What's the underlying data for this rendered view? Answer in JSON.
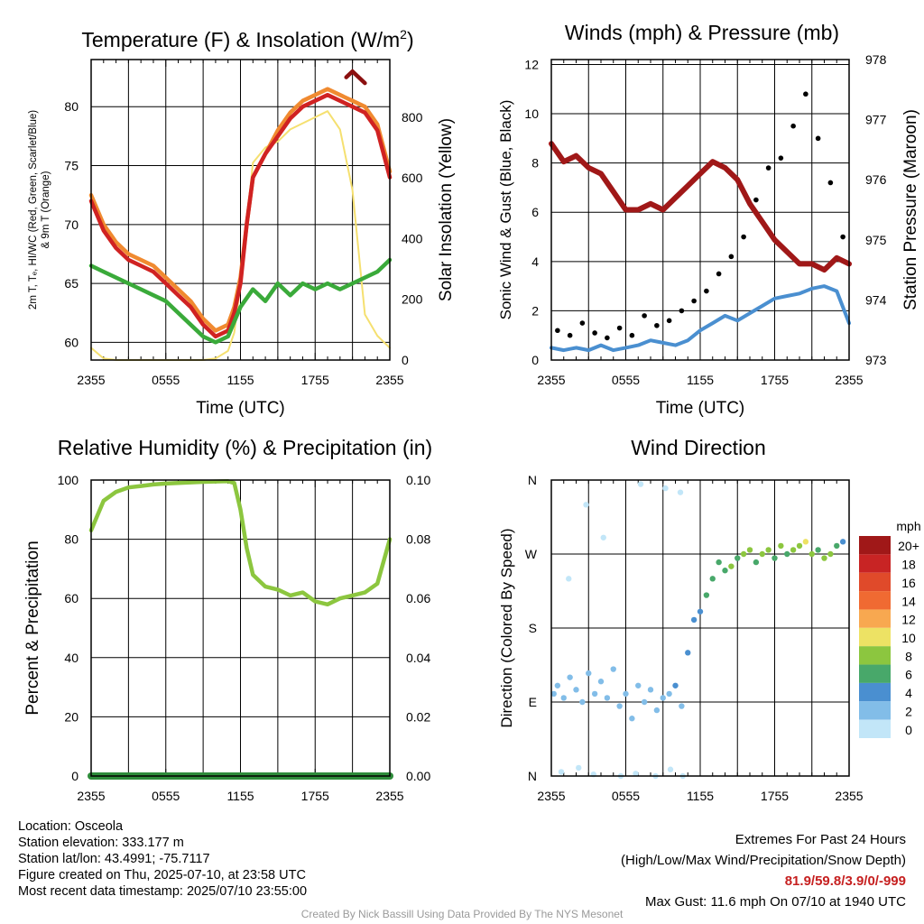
{
  "chart_data": [
    {
      "id": "temp",
      "type": "line",
      "title": "Temperature (F) & Insolation (W/m²)",
      "title_main": "Temperature (F) & Insolation (W/m",
      "title_sup": "2",
      "title_close": ")",
      "xlabel": "Time (UTC)",
      "ylabel_lines": [
        "2m T, Tₑ, HI/WC (Red, Green, Scarlet/Blue)",
        "& 9m T (Orange)"
      ],
      "y2label": "Solar Insolation (Yellow)",
      "x_ticks": [
        "2355",
        "0555",
        "1155",
        "1755",
        "2355"
      ],
      "x_range_hours": [
        0,
        24
      ],
      "ylim": [
        58.5,
        84
      ],
      "y_ticks": [
        60,
        65,
        70,
        75,
        80
      ],
      "y2lim": [
        0,
        990
      ],
      "y2_ticks": [
        0,
        200,
        400,
        600,
        800
      ],
      "grid": true,
      "series": [
        {
          "color": "#f08a30",
          "axis": "left",
          "x": [
            0,
            1,
            2,
            3,
            4,
            5,
            6,
            7,
            8,
            9,
            10,
            11,
            11.5,
            12,
            12.5,
            13,
            14,
            15,
            16,
            17,
            18,
            19,
            20,
            21,
            22,
            23,
            24
          ],
          "values": [
            72.5,
            70,
            68.5,
            67.5,
            67,
            66.5,
            65.5,
            64.5,
            63.5,
            62,
            61,
            61.5,
            63,
            65.5,
            70,
            74,
            76,
            78,
            79.5,
            80.5,
            81,
            81.5,
            81,
            80.5,
            80,
            78.5,
            74.5
          ]
        },
        {
          "color": "#d02222",
          "axis": "left",
          "x": [
            0,
            1,
            2,
            3,
            4,
            5,
            6,
            7,
            8,
            9,
            10,
            11,
            11.5,
            12,
            12.5,
            13,
            14,
            15,
            16,
            17,
            18,
            19,
            20,
            21,
            22,
            23,
            24
          ],
          "values": [
            72,
            69.5,
            68,
            67,
            66.5,
            66,
            65,
            64,
            63,
            61.5,
            60.5,
            61,
            62.5,
            65,
            70,
            74,
            76,
            77.5,
            79,
            80,
            80.5,
            81,
            80.5,
            80,
            79.5,
            78,
            74
          ]
        },
        {
          "color": "#3aaa3a",
          "axis": "left",
          "x": [
            0,
            1,
            2,
            3,
            4,
            5,
            6,
            7,
            8,
            9,
            10,
            11,
            12,
            13,
            14,
            15,
            16,
            17,
            18,
            19,
            20,
            21,
            22,
            23,
            24
          ],
          "values": [
            66.5,
            66,
            65.5,
            65,
            64.5,
            64,
            63.5,
            62.5,
            61.5,
            60.5,
            60,
            60.5,
            63,
            64.5,
            63.5,
            65,
            64,
            65,
            64.5,
            65,
            64.5,
            65,
            65.5,
            66,
            67
          ]
        },
        {
          "color": "#8b1010",
          "axis": "left",
          "x": [
            20.5,
            21,
            21.5,
            22
          ],
          "values": [
            82.5,
            83,
            82.5,
            82
          ]
        },
        {
          "color": "#f5e070",
          "axis": "right",
          "x": [
            0,
            1,
            2,
            3,
            4,
            5,
            6,
            7,
            8,
            9,
            10,
            11,
            11.5,
            12,
            12.5,
            13,
            14,
            15,
            16,
            17,
            18,
            19,
            20,
            21,
            22,
            23,
            24
          ],
          "values": [
            40,
            5,
            0,
            0,
            0,
            0,
            0,
            0,
            0,
            0,
            5,
            30,
            90,
            250,
            450,
            650,
            700,
            720,
            760,
            780,
            800,
            820,
            760,
            560,
            150,
            80,
            40
          ]
        }
      ]
    },
    {
      "id": "wind",
      "type": "line",
      "title": "Winds (mph) & Pressure (mb)",
      "xlabel": "Time (UTC)",
      "ylabel": "Sonic Wind & Gust (Blue, Black)",
      "y2label": "Station Pressure (Maroon)",
      "x_ticks": [
        "2355",
        "0555",
        "1155",
        "1755",
        "2355"
      ],
      "x_range_hours": [
        0,
        24
      ],
      "ylim": [
        0,
        12.2
      ],
      "y_ticks": [
        0,
        2,
        4,
        6,
        8,
        10,
        12
      ],
      "y2lim": [
        973,
        978
      ],
      "y2_ticks": [
        973,
        974,
        975,
        976,
        977,
        978
      ],
      "grid": true,
      "series": [
        {
          "name": "pressure",
          "color": "#a01818",
          "axis": "right",
          "x": [
            0,
            1,
            2,
            3,
            4,
            5,
            6,
            7,
            8,
            9,
            10,
            11,
            12,
            13,
            14,
            15,
            16,
            17,
            18,
            19,
            20,
            21,
            22,
            23,
            24
          ],
          "values": [
            976.6,
            976.3,
            976.4,
            976.2,
            976.1,
            975.8,
            975.5,
            975.5,
            975.6,
            975.5,
            975.7,
            975.9,
            976.1,
            976.3,
            976.2,
            976.0,
            975.6,
            975.3,
            975.0,
            974.8,
            974.6,
            974.6,
            974.5,
            974.7,
            974.6
          ]
        },
        {
          "name": "wind",
          "color": "#4a8fd0",
          "axis": "left",
          "x": [
            0,
            1,
            2,
            3,
            4,
            5,
            6,
            7,
            8,
            9,
            10,
            11,
            12,
            13,
            14,
            15,
            16,
            17,
            18,
            19,
            20,
            21,
            22,
            23,
            24
          ],
          "values": [
            0.5,
            0.4,
            0.5,
            0.4,
            0.6,
            0.4,
            0.5,
            0.6,
            0.8,
            0.7,
            0.6,
            0.8,
            1.2,
            1.5,
            1.8,
            1.6,
            1.9,
            2.2,
            2.5,
            2.6,
            2.7,
            2.9,
            3.0,
            2.8,
            1.5
          ]
        },
        {
          "name": "gust",
          "type": "scatter",
          "color": "#000000",
          "axis": "left",
          "x": [
            0.5,
            1.5,
            2.5,
            3.5,
            4.5,
            5.5,
            6.5,
            7.5,
            8.5,
            9.5,
            10.5,
            11.5,
            12.5,
            13.5,
            14.5,
            15.5,
            16.5,
            17.5,
            18.5,
            19.5,
            20.5,
            21.5,
            22.5,
            23.5
          ],
          "values": [
            1.2,
            1.0,
            1.5,
            1.1,
            0.9,
            1.3,
            1.0,
            1.8,
            1.4,
            1.6,
            2.0,
            2.4,
            2.8,
            3.5,
            4.2,
            5.0,
            6.5,
            7.8,
            8.2,
            9.5,
            10.8,
            9.0,
            7.2,
            5.0
          ]
        }
      ]
    },
    {
      "id": "rh",
      "type": "line",
      "title": "Relative Humidity (%) & Precipitation (in)",
      "ylabel": "Percent & Precipitation",
      "x_ticks": [
        "2355",
        "0555",
        "1155",
        "1755",
        "2355"
      ],
      "x_range_hours": [
        0,
        24
      ],
      "ylim": [
        0,
        100
      ],
      "y_ticks": [
        0,
        20,
        40,
        60,
        80,
        100
      ],
      "y2lim": [
        0,
        0.1
      ],
      "y2_ticks": [
        "0.00",
        "0.02",
        "0.04",
        "0.06",
        "0.08",
        "0.10"
      ],
      "grid": true,
      "series": [
        {
          "color": "#8cc63f",
          "axis": "left",
          "x": [
            0,
            1,
            2,
            3,
            4,
            5,
            6,
            7,
            8,
            9,
            10,
            11,
            11.5,
            12,
            12.5,
            13,
            14,
            15,
            16,
            17,
            18,
            19,
            20,
            21,
            22,
            23,
            24
          ],
          "values": [
            83,
            93,
            96,
            97.5,
            98,
            98.5,
            98.8,
            99,
            99.2,
            99.4,
            99.5,
            99.6,
            99,
            90,
            77,
            68,
            64,
            63,
            61,
            62,
            59,
            58,
            60,
            61,
            62,
            65,
            80
          ]
        },
        {
          "color": "#2e8b3a",
          "axis": "right",
          "x": [
            0,
            24
          ],
          "values": [
            0,
            0
          ]
        }
      ]
    },
    {
      "id": "wdir",
      "type": "scatter",
      "title": "Wind Direction",
      "ylabel": "Direction (Colored By Speed)",
      "x_ticks": [
        "2355",
        "0555",
        "1155",
        "1755",
        "2355"
      ],
      "x_range_hours": [
        0,
        24
      ],
      "y_ticks": [
        "N",
        "E",
        "S",
        "W",
        "N"
      ],
      "ylim": [
        0,
        360
      ],
      "grid": true,
      "legend_title": "mph",
      "legend_labels": [
        "20+",
        "18",
        "16",
        "14",
        "12",
        "10",
        "8",
        "6",
        "4",
        "2",
        "0"
      ],
      "legend_colors": [
        "#a01818",
        "#c82424",
        "#e04a2a",
        "#f06a32",
        "#f8a850",
        "#ede264",
        "#8cc63f",
        "#48a86a",
        "#4a8fd0",
        "#82bde8",
        "#c2e6f8"
      ],
      "points_hour": [
        0.2,
        0.5,
        1.0,
        1.5,
        2.0,
        2.5,
        3.0,
        3.5,
        4.0,
        4.5,
        5.0,
        5.5,
        6.0,
        6.5,
        7.0,
        7.5,
        8.0,
        8.5,
        9.0,
        9.5,
        10.0,
        10.5,
        11.0,
        11.5,
        12.0,
        12.5,
        13.0,
        13.5,
        14.0,
        14.5,
        15.0,
        15.5,
        16.0,
        16.5,
        17.0,
        17.5,
        18.0,
        18.5,
        19.0,
        19.5,
        20.0,
        20.5,
        21.0,
        21.5,
        22.0,
        22.5,
        23.0,
        23.5,
        0.8,
        2.2,
        3.4,
        5.6,
        6.8,
        8.4,
        9.6,
        10.6,
        1.4,
        2.8,
        4.2,
        7.2,
        9.2,
        10.4
      ],
      "points_deg": [
        100,
        110,
        95,
        120,
        105,
        90,
        125,
        100,
        115,
        95,
        130,
        85,
        100,
        70,
        110,
        90,
        105,
        80,
        95,
        100,
        110,
        85,
        150,
        190,
        200,
        220,
        240,
        260,
        250,
        255,
        265,
        270,
        275,
        260,
        270,
        275,
        265,
        280,
        270,
        275,
        280,
        285,
        270,
        275,
        265,
        270,
        280,
        285,
        5,
        10,
        2,
        0,
        3,
        0,
        8,
        0,
        240,
        330,
        290,
        355,
        350,
        345
      ],
      "points_speed": [
        1,
        1,
        1,
        1,
        1,
        1,
        1,
        1,
        1,
        1,
        1,
        1,
        1,
        1,
        1,
        1,
        1,
        1,
        1,
        1,
        2,
        1,
        2,
        2,
        2,
        3,
        3,
        3,
        3,
        4,
        3,
        4,
        4,
        3,
        4,
        4,
        3,
        4,
        3,
        4,
        4,
        5,
        4,
        3,
        4,
        4,
        3,
        2,
        0,
        0,
        0,
        0,
        0,
        0,
        0,
        0,
        0,
        0,
        0,
        0,
        0,
        0
      ]
    }
  ],
  "footer_left": [
    "Location: Osceola",
    "Station elevation: 333.177 m",
    "Station lat/lon: 43.4991; -75.7117",
    "Figure created on Thu, 2025-07-10, at 23:58 UTC",
    "Most recent data timestamp: 2025/07/10 23:55:00"
  ],
  "extremes": {
    "title": "Extremes For Past 24 Hours",
    "subtitle": "(High/Low/Max Wind/Precipitation/Snow Depth)",
    "values": "81.9/59.8/3.9/0/-999",
    "values_color": "#c62020",
    "max_gust": "Max Gust: 11.6 mph On 07/10 at 1940 UTC"
  },
  "credit": "Created By Nick Bassill Using Data Provided By The NYS Mesonet"
}
